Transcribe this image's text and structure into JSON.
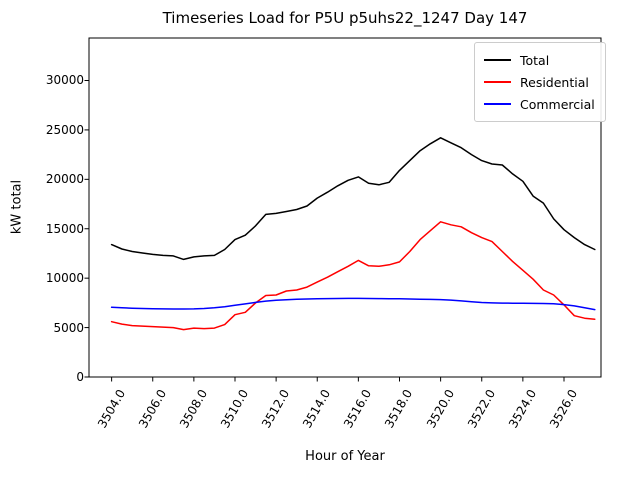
{
  "chart_data": {
    "type": "line",
    "title": "Timeseries Load for P5U p5uhs22_1247  Day 147",
    "xlabel": "Hour of Year",
    "ylabel": "kW total",
    "legend_position": "upper right",
    "grid": false,
    "xlim": [
      3502.9,
      3527.8
    ],
    "ylim": [
      0,
      34300
    ],
    "xticks": [
      3504,
      3506,
      3508,
      3510,
      3512,
      3514,
      3516,
      3518,
      3520,
      3522,
      3524,
      3526
    ],
    "xtick_labels": [
      "3504.0",
      "3506.0",
      "3508.0",
      "3510.0",
      "3512.0",
      "3514.0",
      "3516.0",
      "3518.0",
      "3520.0",
      "3522.0",
      "3524.0",
      "3526.0"
    ],
    "yticks": [
      0,
      5000,
      10000,
      15000,
      20000,
      25000,
      30000
    ],
    "ytick_labels": [
      "0",
      "5000",
      "10000",
      "15000",
      "20000",
      "25000",
      "30000"
    ],
    "x": [
      3504.0,
      3504.5,
      3505.0,
      3505.5,
      3506.0,
      3506.5,
      3507.0,
      3507.5,
      3508.0,
      3508.5,
      3509.0,
      3509.5,
      3510.0,
      3510.5,
      3511.0,
      3511.5,
      3512.0,
      3512.5,
      3513.0,
      3513.5,
      3514.0,
      3514.5,
      3515.0,
      3515.5,
      3516.0,
      3516.5,
      3517.0,
      3517.5,
      3518.0,
      3518.5,
      3519.0,
      3519.5,
      3520.0,
      3520.5,
      3521.0,
      3521.5,
      3522.0,
      3522.5,
      3523.0,
      3523.5,
      3524.0,
      3524.5,
      3525.0,
      3525.5,
      3526.0,
      3526.5,
      3527.0,
      3527.5
    ],
    "series": [
      {
        "name": "Total",
        "color": "#000000",
        "values": [
          13400,
          12950,
          12700,
          12550,
          12400,
          12300,
          12250,
          11900,
          12150,
          12250,
          12300,
          12900,
          13900,
          14350,
          15300,
          16450,
          16550,
          16750,
          16950,
          17300,
          18100,
          18700,
          19350,
          19900,
          20250,
          19600,
          19450,
          19700,
          20900,
          21900,
          22900,
          23600,
          24200,
          23700,
          23200,
          22500,
          21900,
          21550,
          21450,
          20550,
          19800,
          18300,
          17600,
          16000,
          14900,
          14100,
          13400,
          12900
        ]
      },
      {
        "name": "Residential",
        "color": "#ff0000",
        "values": [
          5600,
          5350,
          5200,
          5150,
          5100,
          5050,
          5000,
          4800,
          4950,
          4900,
          4950,
          5300,
          6300,
          6550,
          7500,
          8250,
          8300,
          8700,
          8800,
          9100,
          9600,
          10100,
          10650,
          11200,
          11800,
          11250,
          11200,
          11350,
          11650,
          12700,
          13900,
          14800,
          15700,
          15400,
          15200,
          14600,
          14100,
          13700,
          12700,
          11700,
          10800,
          9900,
          8800,
          8300,
          7300,
          6200,
          5950,
          5850
        ]
      },
      {
        "name": "Commercial",
        "color": "#0000ff",
        "values": [
          7050,
          7000,
          6960,
          6930,
          6910,
          6890,
          6880,
          6880,
          6890,
          6930,
          7000,
          7100,
          7250,
          7400,
          7550,
          7680,
          7760,
          7820,
          7860,
          7890,
          7910,
          7930,
          7940,
          7950,
          7950,
          7940,
          7930,
          7920,
          7910,
          7890,
          7870,
          7850,
          7830,
          7780,
          7700,
          7610,
          7540,
          7500,
          7480,
          7470,
          7460,
          7450,
          7440,
          7410,
          7330,
          7190,
          7010,
          6820
        ]
      }
    ]
  }
}
